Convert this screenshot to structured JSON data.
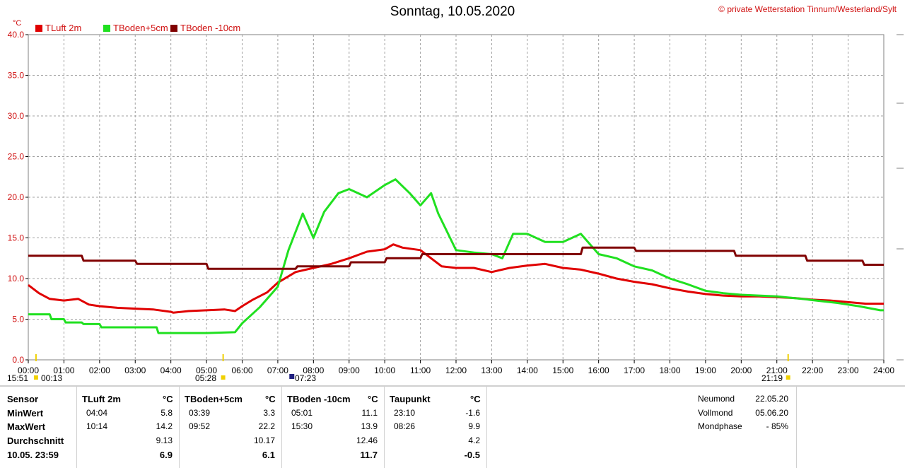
{
  "header": {
    "title": "Sonntag, 10.05.2020",
    "copyright": "© private Wetterstation Tinnum/Westerland/Sylt",
    "unit": "°C"
  },
  "chart_data": {
    "type": "line",
    "ylim": [
      0,
      40
    ],
    "yticks": [
      "0.0",
      "5.0",
      "10.0",
      "15.0",
      "20.0",
      "25.0",
      "30.0",
      "35.0",
      "40.0"
    ],
    "xlim": [
      0,
      24
    ],
    "xticks": [
      "00:00",
      "01:00",
      "02:00",
      "03:00",
      "04:00",
      "05:00",
      "06:00",
      "07:00",
      "08:00",
      "09:00",
      "10:00",
      "11:00",
      "12:00",
      "13:00",
      "14:00",
      "15:00",
      "16:00",
      "17:00",
      "18:00",
      "19:00",
      "20:00",
      "21:00",
      "22:00",
      "23:00",
      "24:00"
    ],
    "grid": true,
    "legend_position": "top-left",
    "series": [
      {
        "name": "TLuft 2m",
        "color": "#e00000",
        "x": [
          0,
          0.3,
          0.6,
          1.0,
          1.4,
          1.7,
          2.0,
          2.5,
          3.0,
          3.5,
          4.0,
          4.07,
          4.5,
          5.0,
          5.5,
          5.8,
          6.0,
          6.3,
          6.7,
          7.0,
          7.5,
          8.0,
          8.5,
          9.0,
          9.5,
          10.0,
          10.24,
          10.5,
          11.0,
          11.3,
          11.6,
          12.0,
          12.5,
          13.0,
          13.5,
          14.0,
          14.5,
          15.0,
          15.5,
          16.0,
          16.5,
          17.0,
          17.5,
          18.0,
          18.5,
          19.0,
          19.5,
          20.0,
          20.5,
          21.0,
          21.5,
          22.0,
          22.5,
          23.0,
          23.5,
          24.0
        ],
        "values": [
          9.2,
          8.2,
          7.5,
          7.3,
          7.5,
          6.8,
          6.6,
          6.4,
          6.3,
          6.2,
          5.9,
          5.8,
          6.0,
          6.1,
          6.2,
          6.0,
          6.6,
          7.4,
          8.3,
          9.5,
          10.8,
          11.3,
          11.8,
          12.5,
          13.3,
          13.6,
          14.2,
          13.8,
          13.5,
          12.5,
          11.5,
          11.3,
          11.3,
          10.8,
          11.3,
          11.6,
          11.8,
          11.3,
          11.1,
          10.6,
          10.0,
          9.6,
          9.3,
          8.8,
          8.4,
          8.1,
          7.9,
          7.8,
          7.8,
          7.7,
          7.6,
          7.4,
          7.3,
          7.1,
          6.9,
          6.9
        ]
      },
      {
        "name": "TBoden+5cm",
        "color": "#20e020",
        "x": [
          0,
          0.6,
          0.65,
          1.0,
          1.05,
          1.5,
          1.55,
          2.0,
          2.05,
          3.0,
          3.6,
          3.65,
          4.0,
          4.05,
          5.0,
          5.8,
          6.0,
          6.5,
          7.0,
          7.3,
          7.7,
          8.0,
          8.3,
          8.7,
          9.0,
          9.5,
          10.0,
          10.3,
          10.7,
          11.0,
          11.3,
          11.5,
          12.0,
          12.5,
          13.0,
          13.3,
          13.6,
          14.0,
          14.5,
          15.0,
          15.5,
          15.8,
          16.0,
          16.5,
          17.0,
          17.5,
          18.0,
          18.5,
          19.0,
          19.5,
          20.0,
          21.0,
          21.7,
          22.3,
          22.7,
          23.3,
          23.9,
          24.0
        ],
        "values": [
          5.6,
          5.6,
          5.0,
          5.0,
          4.6,
          4.6,
          4.4,
          4.4,
          4.0,
          4.0,
          4.0,
          3.3,
          3.3,
          3.3,
          3.3,
          3.4,
          4.5,
          6.5,
          9.0,
          13.5,
          18.0,
          15.0,
          18.2,
          20.5,
          21.0,
          20.0,
          21.5,
          22.2,
          20.5,
          19.0,
          20.5,
          18.0,
          13.5,
          13.2,
          13.0,
          12.5,
          15.5,
          15.5,
          14.5,
          14.5,
          15.5,
          14.0,
          13.0,
          12.5,
          11.5,
          11.0,
          10.0,
          9.3,
          8.5,
          8.2,
          8.0,
          7.8,
          7.5,
          7.2,
          7.0,
          6.6,
          6.1,
          6.1
        ]
      },
      {
        "name": "TBoden -10cm",
        "color": "#800000",
        "x": [
          0,
          1.5,
          1.55,
          3.0,
          3.05,
          5.0,
          5.05,
          7.5,
          7.55,
          9.0,
          9.05,
          10.0,
          10.05,
          11.0,
          11.05,
          15.5,
          15.55,
          17.0,
          17.05,
          19.8,
          19.85,
          21.8,
          21.85,
          23.4,
          23.45,
          24.0
        ],
        "values": [
          12.8,
          12.8,
          12.2,
          12.2,
          11.8,
          11.8,
          11.2,
          11.2,
          11.5,
          11.5,
          12.0,
          12.0,
          12.5,
          12.5,
          13.0,
          13.0,
          13.8,
          13.8,
          13.4,
          13.4,
          12.8,
          12.8,
          12.2,
          12.2,
          11.7,
          11.7
        ]
      }
    ]
  },
  "markers": {
    "sunrise": "05:28",
    "sunset": "21:19",
    "left_time": "15:51",
    "left_time2": "00:13",
    "mark_time": "07:23"
  },
  "table": {
    "columns": [
      {
        "header": "Sensor",
        "unit": ""
      },
      {
        "header": "TLuft 2m",
        "unit": "°C"
      },
      {
        "header": "TBoden+5cm",
        "unit": "°C"
      },
      {
        "header": "TBoden -10cm",
        "unit": "°C"
      },
      {
        "header": "Taupunkt",
        "unit": "°C"
      }
    ],
    "rows": [
      {
        "label": "MinWert",
        "cells": [
          [
            "04:04",
            "5.8"
          ],
          [
            "03:39",
            "3.3"
          ],
          [
            "05:01",
            "11.1"
          ],
          [
            "23:10",
            "-1.6"
          ]
        ]
      },
      {
        "label": "MaxWert",
        "cells": [
          [
            "10:14",
            "14.2"
          ],
          [
            "09:52",
            "22.2"
          ],
          [
            "15:30",
            "13.9"
          ],
          [
            "08:26",
            "9.9"
          ]
        ]
      },
      {
        "label": "Durchschnitt",
        "cells": [
          [
            "",
            "9.13"
          ],
          [
            "",
            "10.17"
          ],
          [
            "",
            "12.46"
          ],
          [
            "",
            "4.2"
          ]
        ]
      },
      {
        "label": "10.05. 23:59",
        "cells": [
          [
            "",
            "6.9"
          ],
          [
            "",
            "6.1"
          ],
          [
            "",
            "11.7"
          ],
          [
            "",
            "-0.5"
          ]
        ]
      }
    ]
  },
  "moon": {
    "rows": [
      {
        "label": "Neumond",
        "value": "22.05.20"
      },
      {
        "label": "Vollmond",
        "value": "05.06.20"
      },
      {
        "label": "Mondphase",
        "value": "- 85%"
      }
    ]
  }
}
